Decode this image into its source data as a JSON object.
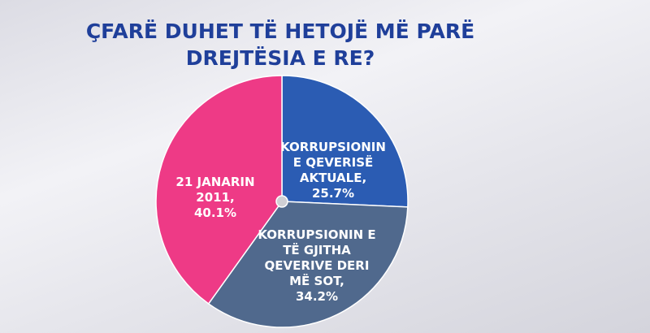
{
  "chart_data": {
    "type": "pie",
    "title": "ÇFARË DUHET TË HETOJË MË PARË DREJTËSIA E RE?",
    "categories": [
      "KORRUPSIONIN E QEVERISË AKTUALE,",
      "KORRUPSIONIN E TË GJITHA QEVERIVE DERI MË SOT,",
      "21 JANARIN 2011,"
    ],
    "values": [
      25.7,
      34.2,
      40.1
    ],
    "value_labels": [
      "25.7%",
      "34.2%",
      "40.1%"
    ],
    "colors": [
      "#2b5cb3",
      "#50698d",
      "#ee3a86"
    ]
  }
}
